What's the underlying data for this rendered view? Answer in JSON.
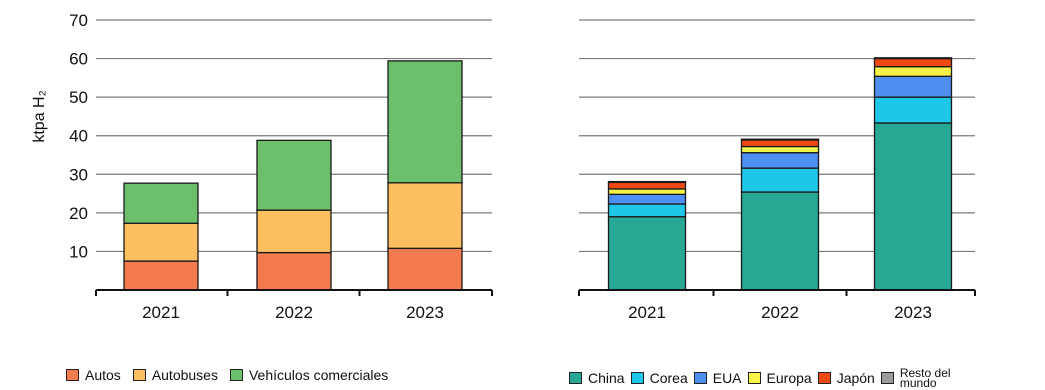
{
  "chart_data": [
    {
      "type": "bar",
      "stacked": true,
      "ylabel": "ktpa H₂",
      "ylim": [
        0,
        70
      ],
      "yticks": [
        10,
        20,
        30,
        40,
        50,
        60,
        70
      ],
      "grid": true,
      "legend_position": "bottom",
      "categories": [
        "2021",
        "2022",
        "2023"
      ],
      "series": [
        {
          "name": "Autos",
          "color": "#f47a50",
          "values": [
            7.5,
            9.7,
            10.8
          ]
        },
        {
          "name": "Autobuses",
          "color": "#fdbf5f",
          "values": [
            9.8,
            11.0,
            17.0
          ]
        },
        {
          "name": "Vehículos comerciales",
          "color": "#6cc06b",
          "values": [
            10.4,
            18.1,
            31.6
          ]
        }
      ]
    },
    {
      "type": "bar",
      "stacked": true,
      "ylim": [
        0,
        70
      ],
      "grid": true,
      "legend_position": "bottom",
      "categories": [
        "2021",
        "2022",
        "2023"
      ],
      "series": [
        {
          "name": "China",
          "color": "#26a894",
          "values": [
            19.0,
            25.4,
            43.3
          ]
        },
        {
          "name": "Corea",
          "color": "#1ec6e8",
          "values": [
            3.3,
            6.2,
            6.7
          ]
        },
        {
          "name": "EUA",
          "color": "#4f8ff2",
          "values": [
            2.5,
            4.0,
            5.4
          ]
        },
        {
          "name": "Europa",
          "color": "#f9f44a",
          "values": [
            1.4,
            1.6,
            2.5
          ]
        },
        {
          "name": "Japón",
          "color": "#f04a14",
          "values": [
            1.7,
            1.7,
            2.1
          ]
        },
        {
          "name": "Resto del mundo",
          "color": "#9a9a9a",
          "values": [
            0.2,
            0.2,
            0.2
          ]
        }
      ]
    }
  ]
}
